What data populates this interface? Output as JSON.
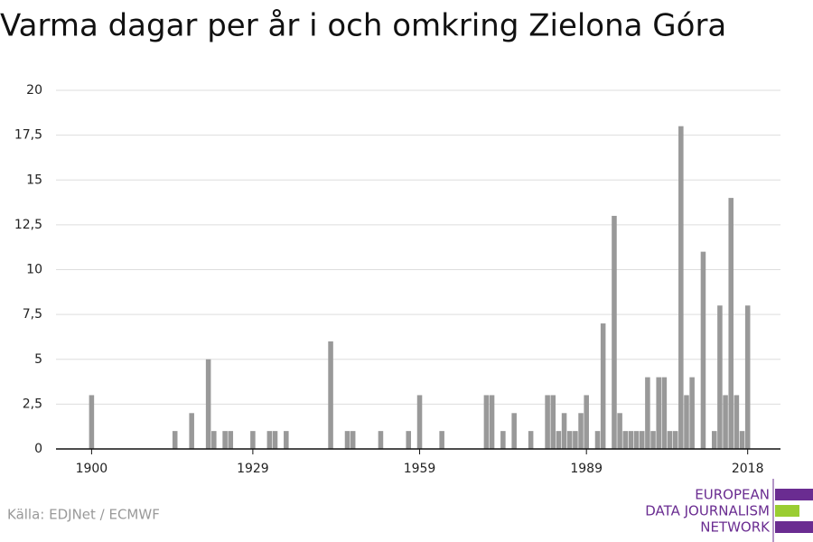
{
  "chart_data": {
    "type": "bar",
    "title": "Varma dagar per år i och omkring Zielona Góra",
    "x": [
      1900,
      1915,
      1918,
      1921,
      1922,
      1924,
      1925,
      1929,
      1932,
      1933,
      1935,
      1943,
      1946,
      1947,
      1952,
      1957,
      1959,
      1963,
      1971,
      1972,
      1974,
      1976,
      1979,
      1982,
      1983,
      1984,
      1985,
      1986,
      1987,
      1988,
      1989,
      1991,
      1992,
      1994,
      1995,
      1996,
      1997,
      1998,
      1999,
      2000,
      2001,
      2002,
      2003,
      2004,
      2005,
      2006,
      2007,
      2008,
      2010,
      2012,
      2013,
      2014,
      2015,
      2016,
      2017,
      2018
    ],
    "values": [
      3,
      1,
      2,
      5,
      1,
      1,
      1,
      1,
      1,
      1,
      1,
      6,
      1,
      1,
      1,
      1,
      3,
      1,
      3,
      3,
      1,
      2,
      1,
      3,
      3,
      1,
      2,
      1,
      1,
      2,
      3,
      1,
      7,
      13,
      2,
      1,
      1,
      1,
      1,
      4,
      1,
      4,
      4,
      1,
      1,
      18,
      3,
      4,
      11,
      1,
      8,
      3,
      14,
      3,
      1,
      8
    ],
    "color": "#999999",
    "xlim": [
      1893.6,
      2023.9
    ],
    "xticks": [
      1900,
      1929,
      1959,
      1989,
      2018
    ],
    "ylim": [
      0,
      20
    ],
    "yticks": [
      0,
      {
        "value": 2.5,
        "label": "2,5"
      },
      5,
      {
        "value": 7.5,
        "label": "7,5"
      },
      10,
      {
        "value": 12.5,
        "label": "12,5"
      },
      15,
      {
        "value": 17.5,
        "label": "17,5"
      },
      20
    ],
    "grid": true
  },
  "footer": {
    "source": "Källa: EDJNet / ECMWF",
    "logo": [
      "EUROPEAN",
      "DATA JOURNALISM",
      "NETWORK"
    ]
  }
}
